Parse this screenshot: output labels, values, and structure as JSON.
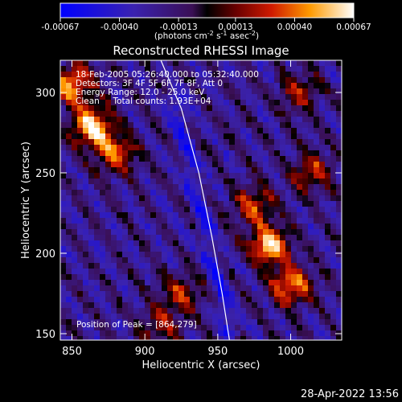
{
  "chart_data": {
    "type": "heatmap",
    "title": "Reconstructed RHESSI Image",
    "xlabel": "Heliocentric X (arcsec)",
    "ylabel": "Heliocentric Y (arcsec)",
    "xlim": [
      842,
      1035
    ],
    "ylim": [
      146,
      320
    ],
    "x_ticks": [
      850,
      900,
      950,
      1000
    ],
    "y_ticks": [
      150,
      200,
      250,
      300
    ],
    "colorbar": {
      "ticks": [
        "-0.00067",
        "-0.00040",
        "-0.00013",
        "0.00013",
        "0.00040",
        "0.00067"
      ],
      "range": [
        -0.00067,
        0.00067
      ],
      "units_prefix": "(photons cm",
      "units_exp1": "-2",
      "units_mid": " s",
      "units_exp2": "-1",
      "units_mid2": " asec",
      "units_exp3": "-2",
      "units_suffix": ")"
    },
    "annotations": [
      "18-Feb-2005 05:26:40.000 to 05:32:40.000",
      "Detectors: 3F 4F 5F 6F 7F 8F, Att 0",
      "Energy Range: 12.0 - 25.0 keV",
      "Clean     Total counts: 1.93E+04"
    ],
    "peak_label": "Position of Peak = [864,279]",
    "peak": [
      864,
      279
    ],
    "limb_curve": [
      [
        911,
        320
      ],
      [
        925,
        290
      ],
      [
        937,
        250
      ],
      [
        946,
        210
      ],
      [
        953,
        175
      ],
      [
        958,
        146
      ]
    ],
    "bright_regions": [
      {
        "x": 864,
        "y": 279,
        "strength": 1.0
      },
      {
        "x": 850,
        "y": 305,
        "strength": 0.85
      },
      {
        "x": 880,
        "y": 262,
        "strength": 0.7
      },
      {
        "x": 985,
        "y": 205,
        "strength": 0.95
      },
      {
        "x": 1000,
        "y": 180,
        "strength": 0.8
      },
      {
        "x": 975,
        "y": 230,
        "strength": 0.6
      },
      {
        "x": 1015,
        "y": 250,
        "strength": 0.55
      },
      {
        "x": 925,
        "y": 175,
        "strength": 0.5
      },
      {
        "x": 1005,
        "y": 300,
        "strength": 0.45
      },
      {
        "x": 910,
        "y": 155,
        "strength": 0.45
      }
    ]
  },
  "footer": {
    "timestamp": "28-Apr-2022 13:56"
  }
}
